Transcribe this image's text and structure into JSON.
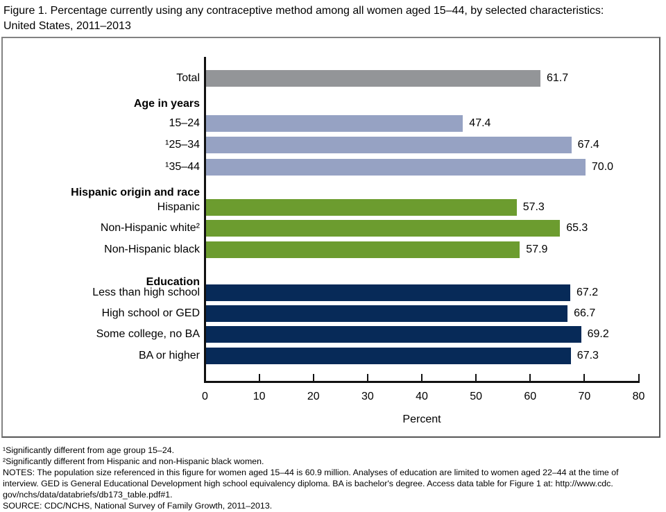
{
  "title": {
    "line1": "Figure 1. Percentage currently using any contraceptive method among all women aged 15–44, by selected characteristics:",
    "line2": "United States, 2011–2013"
  },
  "chart_data": {
    "type": "bar",
    "orientation": "horizontal",
    "title": "Percentage currently using any contraceptive method among all women aged 15–44, by selected characteristics: United States, 2011–2013",
    "xlabel": "Percent",
    "xlim": [
      0,
      80
    ],
    "xticks": [
      0,
      10,
      20,
      30,
      40,
      50,
      60,
      70,
      80
    ],
    "grid": false,
    "legend": "none",
    "colors": {
      "total": "#939598",
      "age": "#96a2c3",
      "hispanic_origin_race": "#6c9c2f",
      "education": "#072a58"
    },
    "rows": [
      {
        "kind": "bar",
        "label": "Total",
        "value": 61.7,
        "display": "61.7",
        "group": "total",
        "color": "#939598"
      },
      {
        "kind": "header",
        "label": "Age in years"
      },
      {
        "kind": "bar",
        "label": "15–24",
        "value": 47.4,
        "display": "47.4",
        "group": "age",
        "color": "#96a2c3"
      },
      {
        "kind": "bar",
        "label": "¹25–34",
        "value": 67.4,
        "display": "67.4",
        "group": "age",
        "color": "#96a2c3"
      },
      {
        "kind": "bar",
        "label": "¹35–44",
        "value": 70.0,
        "display": "70.0",
        "group": "age",
        "color": "#96a2c3"
      },
      {
        "kind": "header",
        "label": "Hispanic origin and race"
      },
      {
        "kind": "bar",
        "label": "Hispanic",
        "value": 57.3,
        "display": "57.3",
        "group": "hispanic_origin_race",
        "color": "#6c9c2f"
      },
      {
        "kind": "bar",
        "label": "Non-Hispanic white²",
        "value": 65.3,
        "display": "65.3",
        "group": "hispanic_origin_race",
        "color": "#6c9c2f"
      },
      {
        "kind": "bar",
        "label": "Non-Hispanic black",
        "value": 57.9,
        "display": "57.9",
        "group": "hispanic_origin_race",
        "color": "#6c9c2f"
      },
      {
        "kind": "header",
        "label": "Education"
      },
      {
        "kind": "bar",
        "label": "Less than high school",
        "value": 67.2,
        "display": "67.2",
        "group": "education",
        "color": "#072a58"
      },
      {
        "kind": "bar",
        "label": "High school or GED",
        "value": 66.7,
        "display": "66.7",
        "group": "education",
        "color": "#072a58"
      },
      {
        "kind": "bar",
        "label": "Some college, no BA",
        "value": 69.2,
        "display": "69.2",
        "group": "education",
        "color": "#072a58"
      },
      {
        "kind": "bar",
        "label": "BA or higher",
        "value": 67.3,
        "display": "67.3",
        "group": "education",
        "color": "#072a58"
      }
    ]
  },
  "footnotes": {
    "lines": [
      "¹Significantly different from age group 15–24.",
      "²Significantly different from Hispanic and non-Hispanic black women.",
      "NOTES: The population size referenced in this figure for women aged 15–44 is 60.9 million. Analyses of education are limited to women aged 22–44 at the time of",
      "interview. GED is General Educational Development high school equivalency diploma. BA is bachelor's degree. Access data table for Figure 1 at: http://www.cdc.",
      "gov/nchs/data/databriefs/db173_table.pdf#1.",
      "SOURCE: CDC/NCHS, National Survey of Family Growth, 2011–2013."
    ]
  }
}
